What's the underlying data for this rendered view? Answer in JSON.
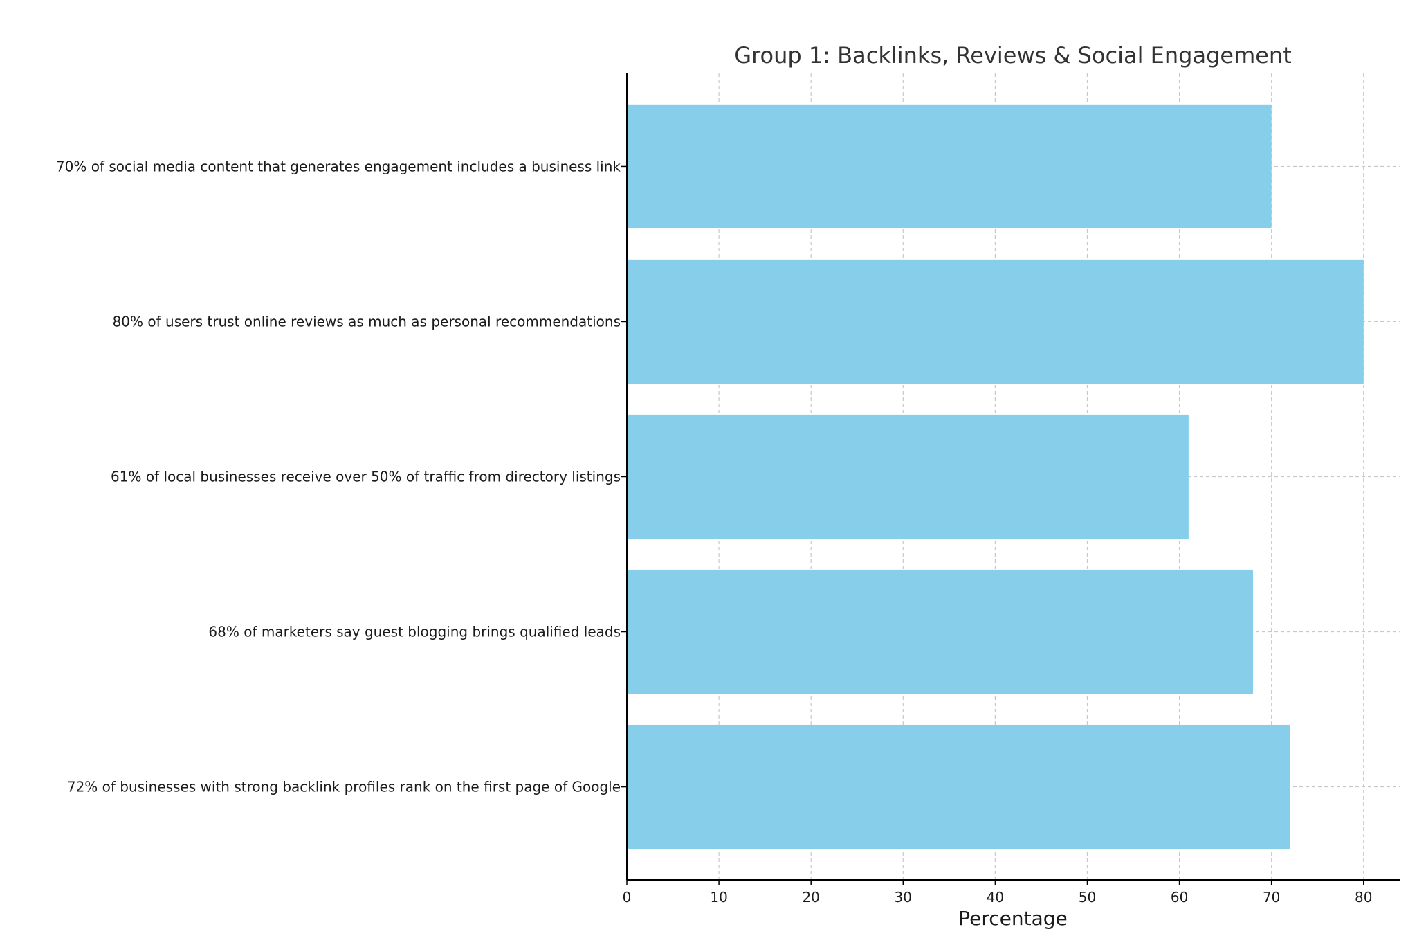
{
  "chart_data": {
    "type": "bar",
    "orientation": "horizontal",
    "title": "Group 1: Backlinks, Reviews & Social Engagement",
    "xlabel": "Percentage",
    "ylabel": "",
    "xlim": [
      0,
      84
    ],
    "xticks": [
      0,
      10,
      20,
      30,
      40,
      50,
      60,
      70,
      80
    ],
    "grid": true,
    "bar_color": "#87CEEB",
    "categories": [
      "72% of businesses with strong backlink profiles rank on the first page of Google",
      "68% of marketers say guest blogging brings qualified leads",
      "61% of local businesses receive over 50% of traffic from directory listings",
      "80% of users trust online reviews as much as personal recommendations",
      "70% of social media content that generates engagement includes a business link"
    ],
    "values": [
      72,
      68,
      61,
      80,
      70
    ]
  }
}
